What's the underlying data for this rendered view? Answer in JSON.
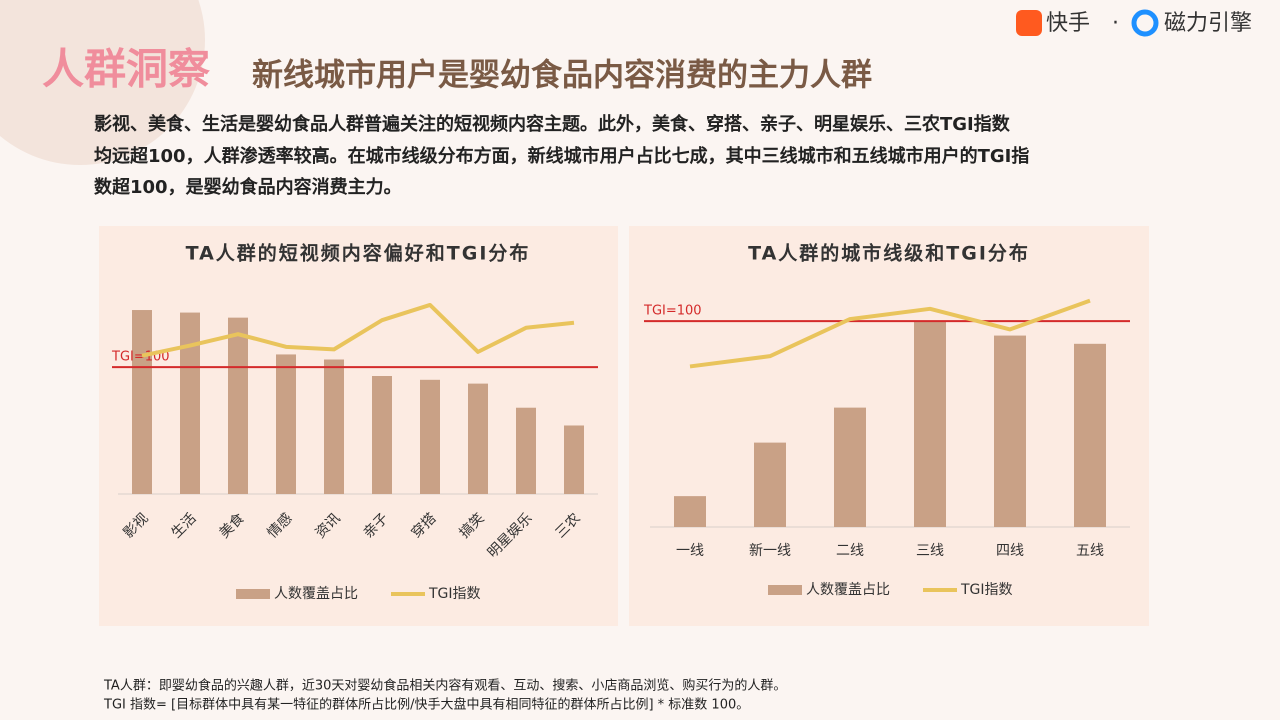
{
  "header": {
    "title": "人群洞察",
    "subtitle": "新线城市用户是婴幼食品内容消费的主力人群",
    "logo": [
      "快手",
      "·",
      "磁力引擎"
    ]
  },
  "body": [
    "影视、美食、生活是婴幼食品人群普遍关注的短视频内容主题。此外，美食、穿搭、亲子、明星娱乐、三农TGI指数",
    "均远超100，人群渗透率较高。在城市线级分布方面，新线城市用户占比七成，其中三线城市和五线城市用户的TGI指",
    "数超100，是婴幼食品内容消费主力。"
  ],
  "chart_data": [
    {
      "type": "combo",
      "title": "TA人群的短视频内容偏好和TGI分布",
      "categories": [
        "影视",
        "生活",
        "美食",
        "情感",
        "资讯",
        "亲子",
        "穿搭",
        "搞笑",
        "明星娱乐",
        "三农"
      ],
      "series": [
        {
          "name": "人数覆盖占比",
          "kind": "bar",
          "color": "#c9a186",
          "values": [
            145,
            143,
            139,
            110,
            106,
            93,
            90,
            87,
            68,
            54
          ]
        },
        {
          "name": "TGI指数",
          "kind": "line",
          "color": "#e9c45c",
          "values": [
            109,
            117,
            126,
            116,
            114,
            137,
            149,
            112,
            131,
            135
          ]
        }
      ],
      "ylim": [
        0,
        160
      ],
      "reference_line": {
        "value": 100,
        "label": "TGI=100",
        "color": "#d42a2a"
      }
    },
    {
      "type": "combo",
      "title": "TA人群的城市线级和TGI分布",
      "categories": [
        "一线",
        "新一线",
        "二线",
        "三线",
        "四线",
        "五线"
      ],
      "series": [
        {
          "name": "人数覆盖占比",
          "kind": "bar",
          "color": "#c9a186",
          "values": [
            15,
            41,
            58,
            100,
            93,
            89
          ]
        },
        {
          "name": "TGI指数",
          "kind": "line",
          "color": "#e9c45c",
          "values": [
            78,
            83,
            101,
            106,
            96,
            110
          ]
        }
      ],
      "ylim": [
        0,
        120
      ],
      "reference_line": {
        "value": 100,
        "label": "TGI=100",
        "color": "#d42a2a"
      }
    }
  ],
  "footnotes": [
    "TA人群：即婴幼食品的兴趣人群，近30天对婴幼食品相关内容有观看、互动、搜索、小店商品浏览、购买行为的人群。",
    "TGI 指数= [目标群体中具有某一特征的群体所占比例/快手大盘中具有相同特征的群体所占比例] * 标准数 100。"
  ]
}
